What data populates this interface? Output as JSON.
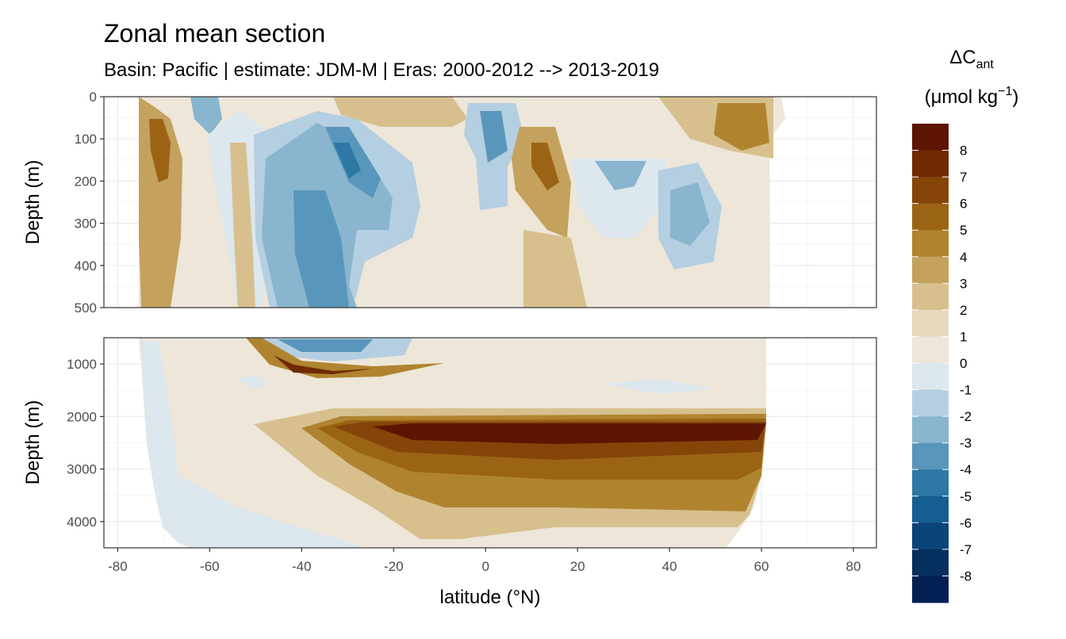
{
  "title": "Zonal mean section",
  "subtitle": "Basin: Pacific | estimate: JDM-M | Eras: 2000-2012 --> 2013-2019",
  "chart_data": {
    "type": "heatmap",
    "title": "Zonal mean section",
    "subtitle": "Basin: Pacific | estimate: JDM-M | Eras: 2000-2012 --> 2013-2019",
    "xlabel": "latitude (°N)",
    "ylabel": "Depth (m)",
    "x_ticks": [
      "-80",
      "-60",
      "-40",
      "-20",
      "0",
      "20",
      "40",
      "60",
      "80"
    ],
    "xlim": [
      -83,
      85
    ],
    "data_xlim": [
      -78,
      64
    ],
    "grid": true,
    "legend_position": "right",
    "panels": [
      {
        "name": "upper",
        "y_ticks": [
          "0",
          "100",
          "200",
          "300",
          "400",
          "500"
        ],
        "ylim": [
          500,
          0
        ],
        "sections": [
          {
            "x": [
              -77,
              -73
            ],
            "y": [
              30,
              500
            ],
            "value": 3
          },
          {
            "x": [
              -72,
              -69
            ],
            "y": [
              60,
              200
            ],
            "value": 5
          },
          {
            "x": [
              -68,
              -62
            ],
            "y": [
              0,
              100
            ],
            "value": -3
          },
          {
            "x": [
              -55,
              -50
            ],
            "y": [
              100,
              500
            ],
            "value": 2
          },
          {
            "x": [
              -48,
              -38
            ],
            "y": [
              200,
              500
            ],
            "value": -4
          },
          {
            "x": [
              -40,
              -30
            ],
            "y": [
              100,
              250
            ],
            "value": -4
          },
          {
            "x": [
              -30,
              -20
            ],
            "y": [
              180,
              320
            ],
            "value": -2
          },
          {
            "x": [
              -35,
              -10
            ],
            "y": [
              0,
              100
            ],
            "value": 2
          },
          {
            "x": [
              -4,
              2
            ],
            "y": [
              20,
              180
            ],
            "value": -3
          },
          {
            "x": [
              6,
              14
            ],
            "y": [
              100,
              280
            ],
            "value": 5
          },
          {
            "x": [
              20,
              34
            ],
            "y": [
              150,
              250
            ],
            "value": -3
          },
          {
            "x": [
              37,
              43
            ],
            "y": [
              180,
              400
            ],
            "value": -2
          },
          {
            "x": [
              48,
              60
            ],
            "y": [
              30,
              130
            ],
            "value": 3
          },
          {
            "x": [
              5,
              20
            ],
            "y": [
              300,
              500
            ],
            "value": 2
          }
        ]
      },
      {
        "name": "lower",
        "y_ticks": [
          "1000",
          "2000",
          "3000",
          "4000"
        ],
        "ylim": [
          4500,
          500
        ],
        "sections": [
          {
            "x": [
              -50,
              -20
            ],
            "y": [
              500,
              700
            ],
            "value": -4
          },
          {
            "x": [
              -45,
              -30
            ],
            "y": [
              700,
              1100
            ],
            "value": 7
          },
          {
            "x": [
              -78,
              -60
            ],
            "y": [
              500,
              4500
            ],
            "value": -0.5
          },
          {
            "x": [
              -30,
              60
            ],
            "y": [
              2100,
              2700
            ],
            "value": 8
          },
          {
            "x": [
              -35,
              60
            ],
            "y": [
              2000,
              3500
            ],
            "value": 5
          },
          {
            "x": [
              -40,
              55
            ],
            "y": [
              1800,
              4500
            ],
            "value": 2
          },
          {
            "x": [
              -60,
              60
            ],
            "y": [
              1000,
              2000
            ],
            "value": 0.5
          }
        ]
      }
    ],
    "legend": {
      "title": "ΔC",
      "title_subscript": "ant",
      "unit": "(μmol kg",
      "unit_superscript": "−1",
      "unit_close": ")",
      "labels": [
        "8",
        "7",
        "6",
        "5",
        "4",
        "3",
        "2",
        "1",
        "0",
        "-1",
        "-2",
        "-3",
        "-4",
        "-5",
        "-6",
        "-7",
        "-8"
      ],
      "colors": [
        "#5c1500",
        "#6f2a04",
        "#854509",
        "#9b6415",
        "#b0842f",
        "#c4a15c",
        "#d7c08e",
        "#e6d9bd",
        "#ede6d9",
        "#dce7ee",
        "#b4cfe1",
        "#89b5cf",
        "#5897bb",
        "#2d78a5",
        "#155e91",
        "#0a4478",
        "#06305e",
        "#041f52"
      ]
    }
  }
}
